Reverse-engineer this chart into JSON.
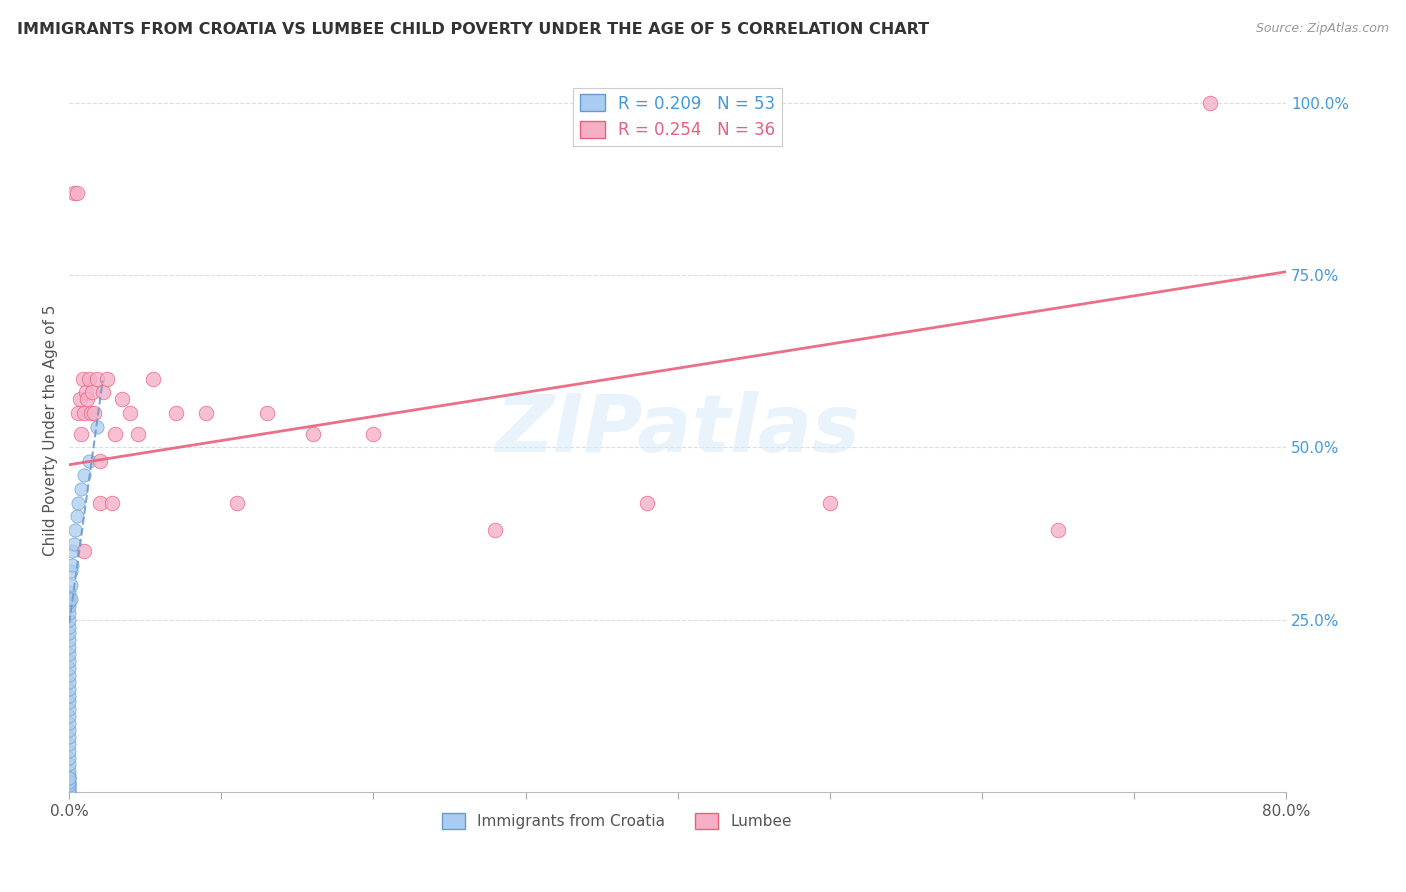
{
  "title": "IMMIGRANTS FROM CROATIA VS LUMBEE CHILD POVERTY UNDER THE AGE OF 5 CORRELATION CHART",
  "source": "Source: ZipAtlas.com",
  "ylabel": "Child Poverty Under the Age of 5",
  "legend_label_croatia": "Immigrants from Croatia",
  "legend_label_lumbee": "Lumbee",
  "croatia_color": "#aaccf0",
  "lumbee_color": "#f5b0c8",
  "trend_croatia_color": "#6699cc",
  "trend_lumbee_color": "#e8607a",
  "watermark": "ZIPatlas",
  "xlim": [
    0.0,
    0.8
  ],
  "ylim": [
    0.0,
    1.05
  ],
  "background_color": "#ffffff",
  "grid_color": "#dddddd",
  "croatia_x": [
    0.0,
    0.0,
    0.0,
    0.0,
    0.0,
    0.0,
    0.0,
    0.0,
    0.0,
    0.0,
    0.0,
    0.0,
    0.0,
    0.0,
    0.0,
    0.0,
    0.0,
    0.0,
    0.0,
    0.0,
    0.0,
    0.0,
    0.0,
    0.0,
    0.0,
    0.0,
    0.0,
    0.0,
    0.0,
    0.0,
    0.0,
    0.0,
    0.0,
    0.0,
    0.0,
    0.0,
    0.0,
    0.0,
    0.0,
    0.0,
    0.001,
    0.001,
    0.001,
    0.002,
    0.002,
    0.003,
    0.004,
    0.005,
    0.006,
    0.008,
    0.01,
    0.013,
    0.018
  ],
  "croatia_y": [
    0.0,
    0.005,
    0.01,
    0.015,
    0.02,
    0.025,
    0.03,
    0.04,
    0.05,
    0.06,
    0.07,
    0.08,
    0.09,
    0.1,
    0.11,
    0.12,
    0.13,
    0.14,
    0.15,
    0.16,
    0.17,
    0.18,
    0.19,
    0.2,
    0.21,
    0.22,
    0.23,
    0.24,
    0.25,
    0.26,
    0.27,
    0.275,
    0.28,
    0.285,
    0.29,
    0.0,
    0.005,
    0.01,
    0.015,
    0.02,
    0.28,
    0.3,
    0.32,
    0.33,
    0.35,
    0.36,
    0.38,
    0.4,
    0.42,
    0.44,
    0.46,
    0.48,
    0.53
  ],
  "lumbee_x": [
    0.003,
    0.005,
    0.006,
    0.007,
    0.008,
    0.009,
    0.01,
    0.011,
    0.012,
    0.013,
    0.014,
    0.015,
    0.016,
    0.018,
    0.02,
    0.022,
    0.025,
    0.028,
    0.03,
    0.035,
    0.04,
    0.045,
    0.055,
    0.07,
    0.09,
    0.11,
    0.13,
    0.16,
    0.2,
    0.28,
    0.38,
    0.5,
    0.65,
    0.75,
    0.01,
    0.02
  ],
  "lumbee_y": [
    0.87,
    0.87,
    0.55,
    0.57,
    0.52,
    0.6,
    0.55,
    0.58,
    0.57,
    0.6,
    0.55,
    0.58,
    0.55,
    0.6,
    0.42,
    0.58,
    0.6,
    0.42,
    0.52,
    0.57,
    0.55,
    0.52,
    0.6,
    0.55,
    0.55,
    0.42,
    0.55,
    0.52,
    0.52,
    0.38,
    0.42,
    0.42,
    0.38,
    1.0,
    0.35,
    0.48
  ],
  "lumbee_trend_start_y": 0.475,
  "lumbee_trend_end_y": 0.755,
  "croatia_trend_intercept": 0.245,
  "croatia_trend_slope": 16.0
}
